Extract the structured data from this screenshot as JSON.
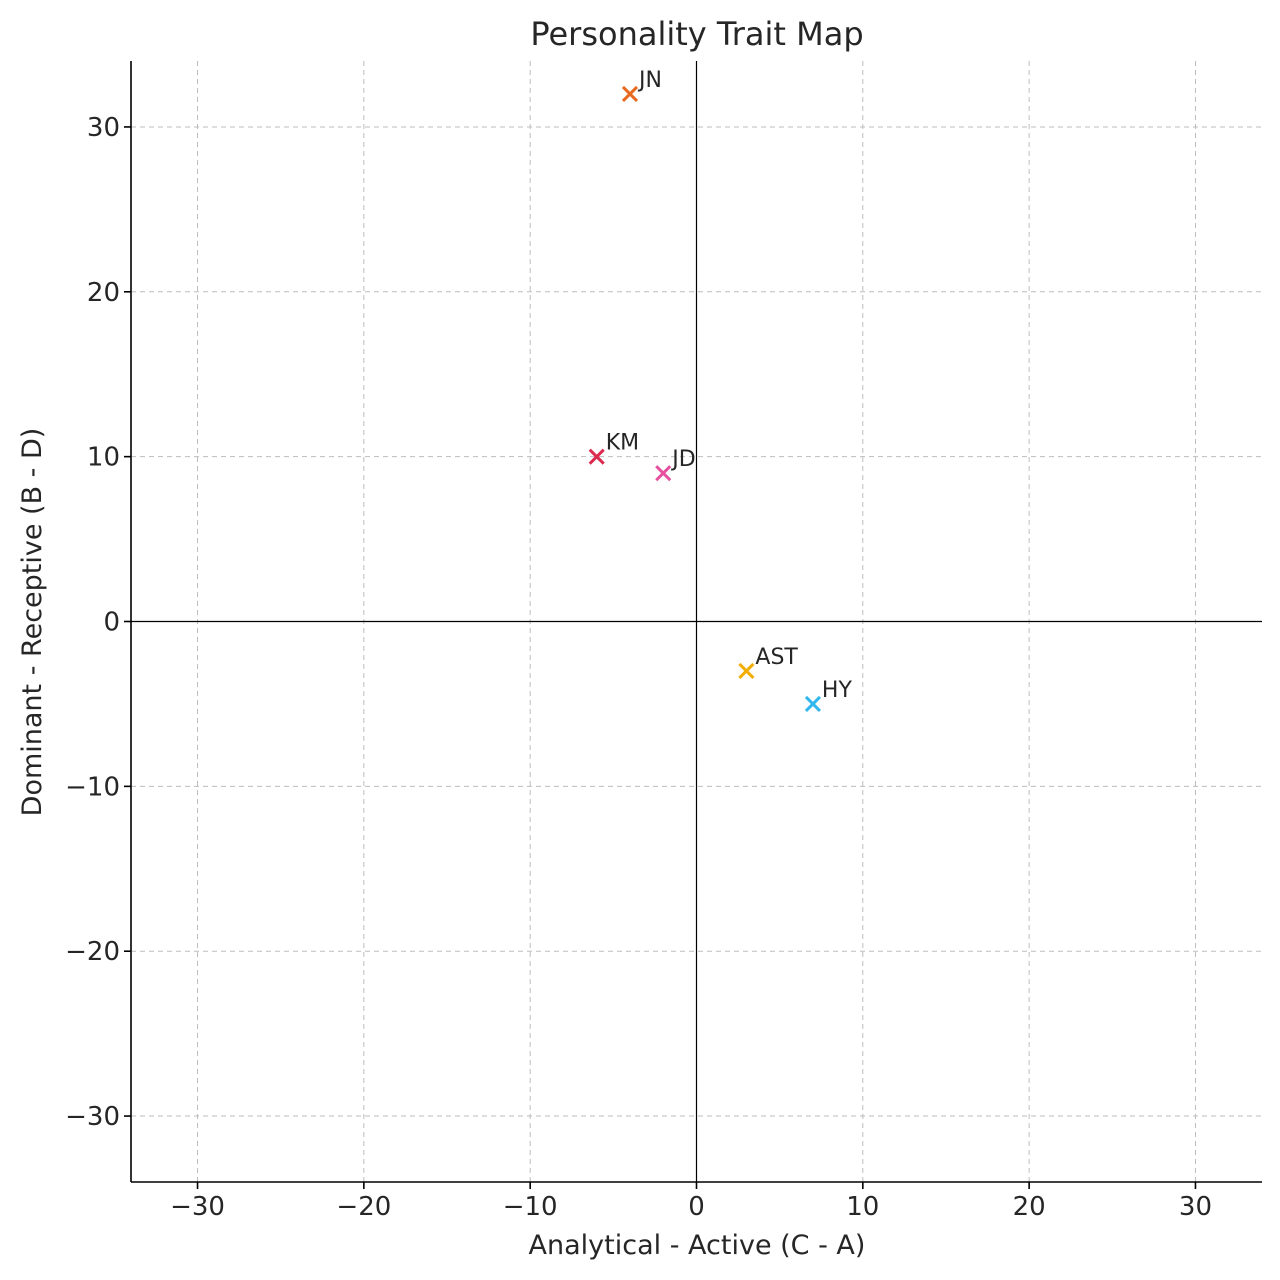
{
  "chart_data": {
    "type": "scatter",
    "title": "Personality Trait Map",
    "xlabel": "Analytical - Active (C - A)",
    "ylabel": "Dominant - Receptive (B - D)",
    "xlim": [
      -34,
      34
    ],
    "ylim": [
      -34,
      34
    ],
    "xticks": [
      -30,
      -20,
      -10,
      0,
      10,
      20,
      30
    ],
    "yticks": [
      -30,
      -20,
      -10,
      0,
      10,
      20,
      30
    ],
    "tick_labels": {
      "x": [
        "−30",
        "−20",
        "−10",
        "0",
        "10",
        "20",
        "30"
      ],
      "y": [
        "−30",
        "−20",
        "−10",
        "0",
        "10",
        "20",
        "30"
      ]
    },
    "grid": true,
    "zero_lines": true,
    "marker": "x",
    "points": [
      {
        "label": "JN",
        "x": -4,
        "y": 32,
        "color": "#E8681E"
      },
      {
        "label": "KM",
        "x": -6,
        "y": 10,
        "color": "#DC2A4E"
      },
      {
        "label": "JD",
        "x": -2,
        "y": 9,
        "color": "#E6509E"
      },
      {
        "label": "AST",
        "x": 3,
        "y": -3,
        "color": "#F2AE00"
      },
      {
        "label": "HY",
        "x": 7,
        "y": -5,
        "color": "#2FB7EE"
      }
    ]
  }
}
